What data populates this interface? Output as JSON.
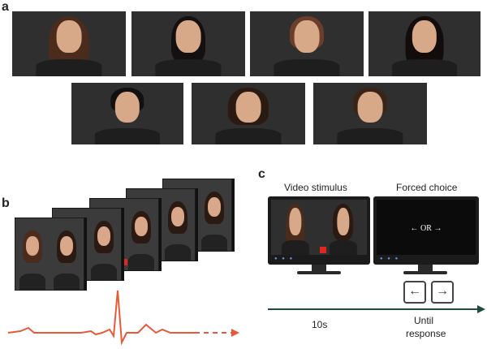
{
  "labels": {
    "a": "a",
    "b": "b",
    "c": "c"
  },
  "panel_c": {
    "video_title": "Video stimulus",
    "choice_title": "Forced choice",
    "screen_text": "← OR →",
    "left_key": "←",
    "right_key": "→",
    "time_1": "10s",
    "time_2_line1": "Until",
    "time_2_line2": "response"
  },
  "colors": {
    "ecg": "#e8593a",
    "red_marker": "#e0271f",
    "axis": "#1f4d3a"
  }
}
